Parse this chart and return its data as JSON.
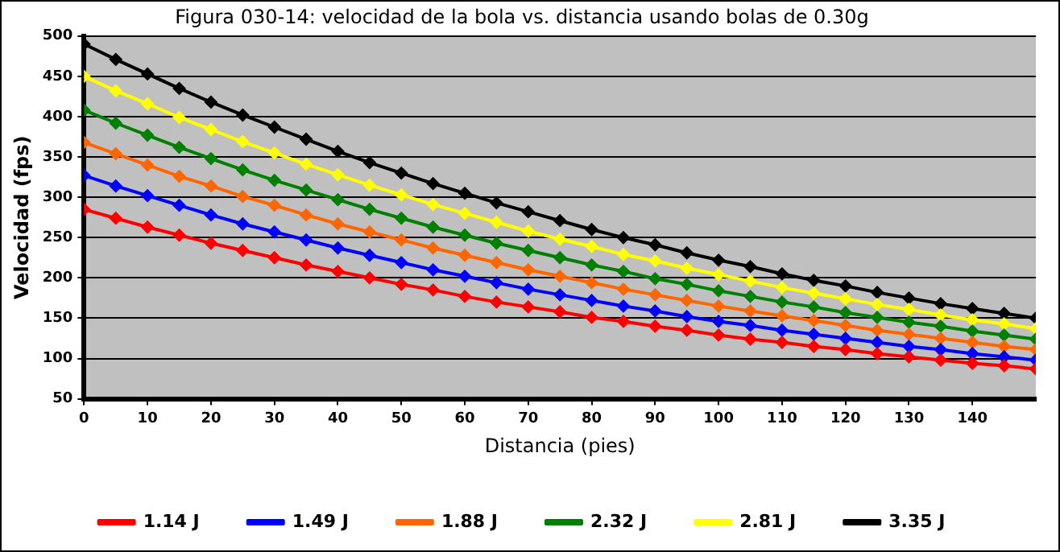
{
  "chart_data": {
    "type": "line",
    "title": "Figura 030-14: velocidad de la bola vs. distancia usando bolas de 0.30g",
    "xlabel": "Distancia (pies)",
    "ylabel": "Velocidad (fps)",
    "x": [
      0,
      5,
      10,
      15,
      20,
      25,
      30,
      35,
      40,
      45,
      50,
      55,
      60,
      65,
      70,
      75,
      80,
      85,
      90,
      95,
      100,
      105,
      110,
      115,
      120,
      125,
      130,
      135,
      140,
      145,
      150
    ],
    "series": [
      {
        "name": "1.14 J",
        "color": "#ff0000",
        "values": [
          285,
          274,
          263,
          253,
          243,
          234,
          225,
          216,
          208,
          200,
          192,
          185,
          177,
          170,
          164,
          158,
          151,
          146,
          140,
          135,
          129,
          124,
          120,
          115,
          111,
          106,
          102,
          98,
          94,
          91,
          87
        ]
      },
      {
        "name": "1.49 J",
        "color": "#0000ff",
        "values": [
          327,
          314,
          302,
          290,
          278,
          267,
          257,
          247,
          237,
          228,
          219,
          210,
          202,
          194,
          186,
          179,
          172,
          165,
          159,
          152,
          146,
          141,
          135,
          130,
          125,
          120,
          115,
          111,
          106,
          102,
          98
        ]
      },
      {
        "name": "1.88 J",
        "color": "#ff6600",
        "values": [
          368,
          354,
          340,
          326,
          314,
          301,
          290,
          278,
          267,
          257,
          247,
          237,
          228,
          219,
          210,
          202,
          194,
          186,
          179,
          172,
          165,
          159,
          153,
          147,
          141,
          135,
          130,
          125,
          120,
          115,
          111
        ]
      },
      {
        "name": "2.32 J",
        "color": "#008000",
        "values": [
          408,
          392,
          377,
          362,
          348,
          334,
          321,
          309,
          297,
          285,
          274,
          263,
          253,
          243,
          234,
          225,
          216,
          208,
          199,
          192,
          184,
          177,
          170,
          164,
          157,
          151,
          145,
          140,
          134,
          129,
          124
        ]
      },
      {
        "name": "2.81 J",
        "color": "#ffff00",
        "values": [
          450,
          432,
          416,
          399,
          384,
          369,
          355,
          341,
          328,
          315,
          303,
          291,
          280,
          269,
          258,
          248,
          239,
          229,
          221,
          212,
          204,
          196,
          188,
          181,
          174,
          167,
          161,
          154,
          148,
          143,
          137
        ]
      },
      {
        "name": "3.35 J",
        "color": "#000000",
        "values": [
          490,
          471,
          453,
          435,
          418,
          402,
          387,
          372,
          357,
          343,
          330,
          317,
          305,
          293,
          282,
          271,
          260,
          250,
          241,
          231,
          222,
          214,
          205,
          197,
          190,
          182,
          175,
          168,
          162,
          156,
          150
        ]
      }
    ],
    "xlim": [
      0,
      150
    ],
    "xticks": [
      0,
      10,
      20,
      30,
      40,
      50,
      60,
      70,
      80,
      90,
      100,
      110,
      120,
      130,
      140
    ],
    "ylim": [
      50,
      500
    ],
    "yticks": [
      50,
      100,
      150,
      200,
      250,
      300,
      350,
      400,
      450,
      500
    ],
    "grid": "y",
    "legend": "bottom",
    "marker": "diamond",
    "line_style": "solid"
  }
}
